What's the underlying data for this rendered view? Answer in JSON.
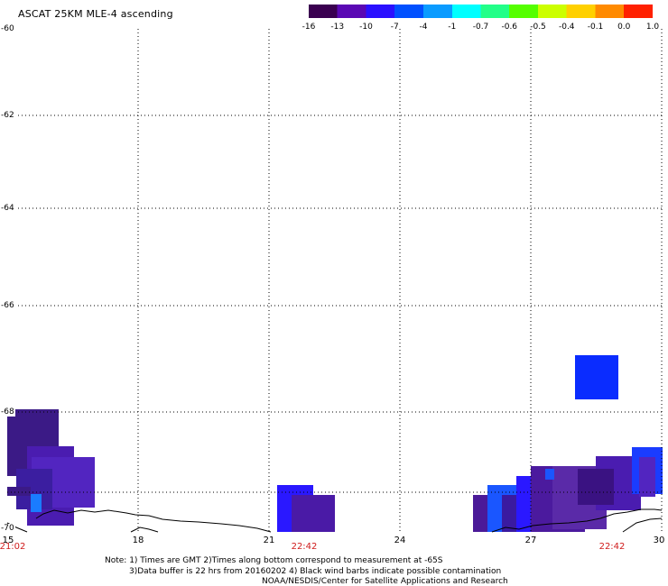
{
  "title": "ASCAT 25KM MLE-4 ascending",
  "colorbar": {
    "labels": [
      "-16",
      "-13",
      "-10",
      "-7",
      "-4",
      "-1",
      "-0.7",
      "-0.6",
      "-0.5",
      "-0.4",
      "-0.1",
      "0.0",
      "1.0"
    ],
    "stops": [
      "#3a0050",
      "#5a08b4",
      "#2a10ff",
      "#0050ff",
      "#0a9bff",
      "#00ffff",
      "#22ff88",
      "#55ff00",
      "#ccff00",
      "#ffd000",
      "#ff8a00",
      "#ff2000"
    ]
  },
  "map": {
    "lat_labels": [
      "-60",
      "-62",
      "-64",
      "-66",
      "-68",
      "-70"
    ],
    "lon_labels": [
      "15",
      "18",
      "21",
      "24",
      "27",
      "30"
    ],
    "time_labels": [
      "21:02",
      "22:42",
      "22:42"
    ],
    "colors": {
      "grid": "#000000",
      "coast": "#000000",
      "time_label": "#d01c1c"
    }
  },
  "notes": {
    "line1": "Note: 1) Times are GMT 2)Times along bottom correspond to measurement at -65S",
    "line2": "3)Data buffer is 22 hrs from 20160202 4) Black wind barbs indicate possible contamination",
    "line3": "NOAA/NESDIS/Center for Satellite Applications and Research"
  }
}
